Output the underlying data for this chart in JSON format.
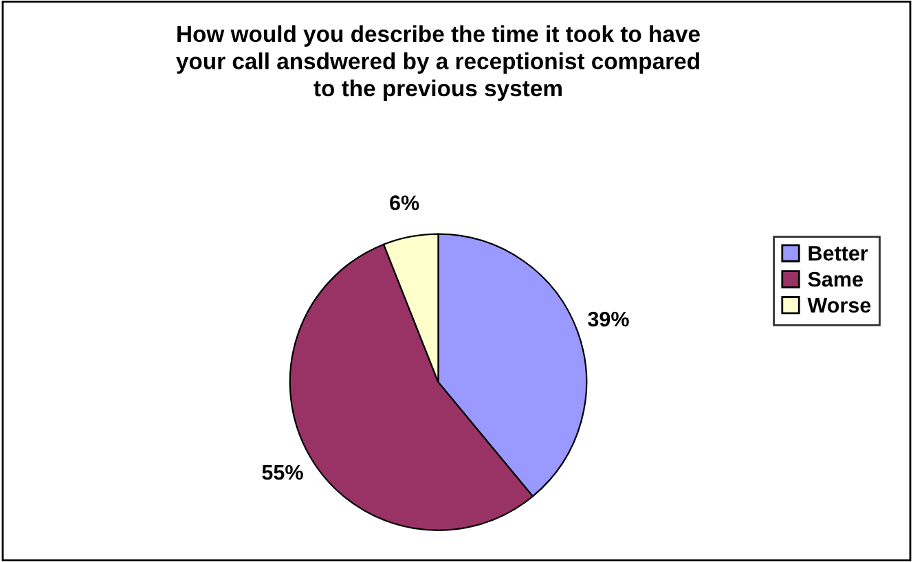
{
  "chart_data": {
    "type": "pie",
    "title": "How would you describe the time it took to have\nyour call ansdwered by a receptionist compared\nto the previous system",
    "categories": [
      "Better",
      "Same",
      "Worse"
    ],
    "values": [
      39,
      55,
      6
    ],
    "colors": [
      "#9999ff",
      "#993366",
      "#ffffcc"
    ],
    "value_labels": [
      "39%",
      "55%",
      "6%"
    ],
    "legend": "right"
  }
}
